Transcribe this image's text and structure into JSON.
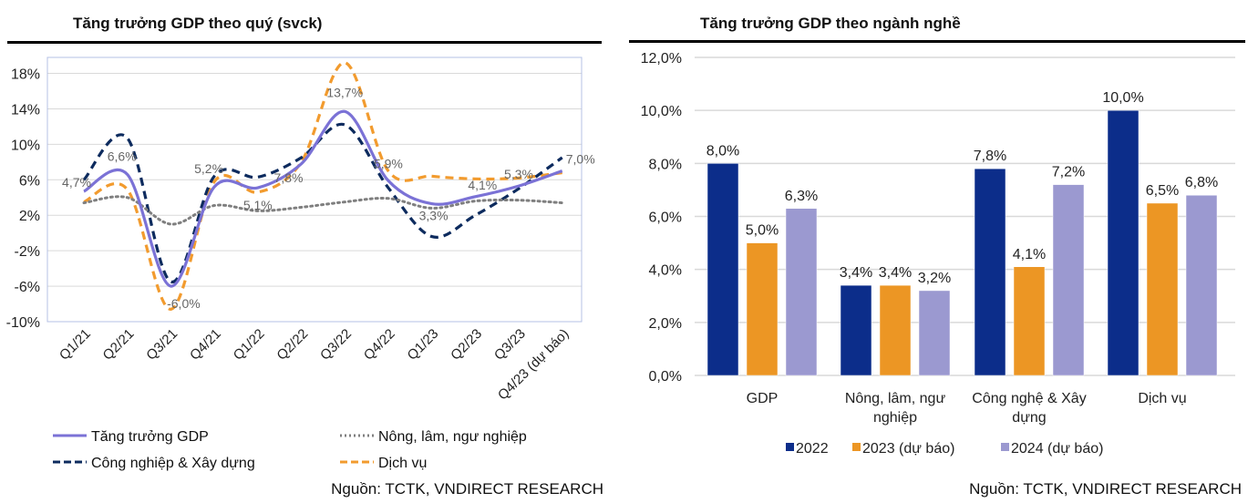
{
  "chart_data": [
    {
      "type": "line",
      "title": "Tăng trưởng GDP theo quý (svck)",
      "x": [
        "Q1/21",
        "Q2/21",
        "Q3/21",
        "Q4/21",
        "Q1/22",
        "Q2/22",
        "Q3/22",
        "Q4/22",
        "Q1/23",
        "Q2/23",
        "Q3/23",
        "Q4/23 (dự báo)"
      ],
      "ylim": [
        -10,
        19.8
      ],
      "yticks": [
        -10,
        -6,
        -2,
        2,
        6,
        10,
        14,
        18
      ],
      "ytick_labels": [
        "-10%",
        "-6%",
        "-2%",
        "2%",
        "6%",
        "10%",
        "14%",
        "18%"
      ],
      "grid": true,
      "legend": "bottom",
      "series": [
        {
          "name": "Tăng trưởng GDP",
          "color": "#7b72d6",
          "style": "solid",
          "values": [
            4.7,
            6.6,
            -6.0,
            5.2,
            5.1,
            7.8,
            13.7,
            5.9,
            3.3,
            4.1,
            5.3,
            7.0
          ],
          "data_labels": [
            "4,7%",
            "6,6%",
            "-6,0%",
            "5,2%",
            "5,1%",
            "7,8%",
            "13,7%",
            "5,9%",
            "3,3%",
            "4,1%",
            "5,3%",
            "7,0%"
          ]
        },
        {
          "name": "Nông, lâm, ngư nghiệp",
          "color": "#7f7f7f",
          "style": "dotted",
          "values": [
            3.4,
            4.0,
            1.0,
            3.1,
            2.5,
            2.9,
            3.5,
            3.9,
            2.8,
            3.6,
            3.7,
            3.4
          ]
        },
        {
          "name": "Công nghiệp & Xây dựng",
          "color": "#0d2b5e",
          "style": "dashed",
          "values": [
            6.0,
            10.7,
            -5.5,
            6.4,
            6.3,
            8.5,
            12.2,
            5.1,
            -0.4,
            2.0,
            5.0,
            8.5
          ]
        },
        {
          "name": "Dịch vụ",
          "color": "#f29b2e",
          "style": "dashed",
          "values": [
            3.5,
            4.9,
            -8.6,
            5.8,
            4.6,
            8.0,
            19.2,
            7.0,
            6.4,
            6.1,
            6.2,
            6.8
          ]
        }
      ],
      "source": "Nguồn: TCTK, VNDIRECT RESEARCH"
    },
    {
      "type": "bar",
      "title": "Tăng trưởng GDP theo ngành nghề",
      "categories": [
        [
          "GDP"
        ],
        [
          "Nông, lâm, ngư",
          "nghiệp"
        ],
        [
          "Công nghệ & Xây",
          "dựng"
        ],
        [
          "Dịch vụ"
        ]
      ],
      "ylim": [
        0,
        12
      ],
      "yticks": [
        0,
        2,
        4,
        6,
        8,
        10,
        12
      ],
      "ytick_labels": [
        "0,0%",
        "2,0%",
        "4,0%",
        "6,0%",
        "8,0%",
        "10,0%",
        "12,0%"
      ],
      "grid": true,
      "legend": "bottom",
      "series": [
        {
          "name": "2022",
          "color": "#0c2d8a",
          "values": [
            8.0,
            3.4,
            7.8,
            10.0
          ],
          "data_labels": [
            "8,0%",
            "3,4%",
            "7,8%",
            "10,0%"
          ]
        },
        {
          "name": "2023 (dự báo)",
          "color": "#ec9624",
          "values": [
            5.0,
            3.4,
            4.1,
            6.5
          ],
          "data_labels": [
            "5,0%",
            "3,4%",
            "4,1%",
            "6,5%"
          ]
        },
        {
          "name": "2024 (dự báo)",
          "color": "#9b99d0",
          "values": [
            6.3,
            3.2,
            7.2,
            6.8
          ],
          "data_labels": [
            "6,3%",
            "3,2%",
            "7,2%",
            "6,8%"
          ]
        }
      ],
      "source": "Nguồn:  TCTK, VNDIRECT RESEARCH"
    }
  ]
}
